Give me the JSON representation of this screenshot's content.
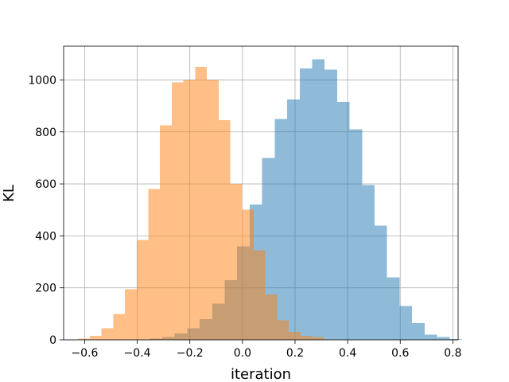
{
  "chart_data": {
    "type": "histogram",
    "xlabel": "iteration",
    "ylabel": "KL",
    "xlim": [
      -0.68,
      0.82
    ],
    "ylim": [
      0,
      1130
    ],
    "xticks": [
      -0.6,
      -0.4,
      -0.2,
      0.0,
      0.2,
      0.4,
      0.6,
      0.8
    ],
    "xtick_labels": [
      "−0.6",
      "−0.4",
      "−0.2",
      "0.0",
      "0.2",
      "0.4",
      "0.6",
      "0.8"
    ],
    "yticks": [
      0,
      200,
      400,
      600,
      800,
      1000
    ],
    "ytick_labels": [
      "0",
      "200",
      "400",
      "600",
      "800",
      "1000"
    ],
    "grid": true,
    "series": [
      {
        "color": "#1f77b4",
        "alpha": 0.5,
        "bin_start": -0.4,
        "bin_width": 0.0475,
        "counts": [
          1,
          4,
          10,
          25,
          45,
          80,
          140,
          230,
          360,
          520,
          700,
          850,
          925,
          1045,
          1080,
          1040,
          915,
          810,
          595,
          440,
          240,
          130,
          65,
          20,
          10,
          3
        ]
      },
      {
        "color": "#ff7f0e",
        "alpha": 0.5,
        "bin_start": -0.625,
        "bin_width": 0.0445,
        "counts": [
          5,
          15,
          45,
          100,
          195,
          385,
          580,
          825,
          990,
          1000,
          1050,
          1000,
          845,
          600,
          500,
          345,
          175,
          75,
          30,
          15,
          10,
          1
        ]
      }
    ]
  }
}
